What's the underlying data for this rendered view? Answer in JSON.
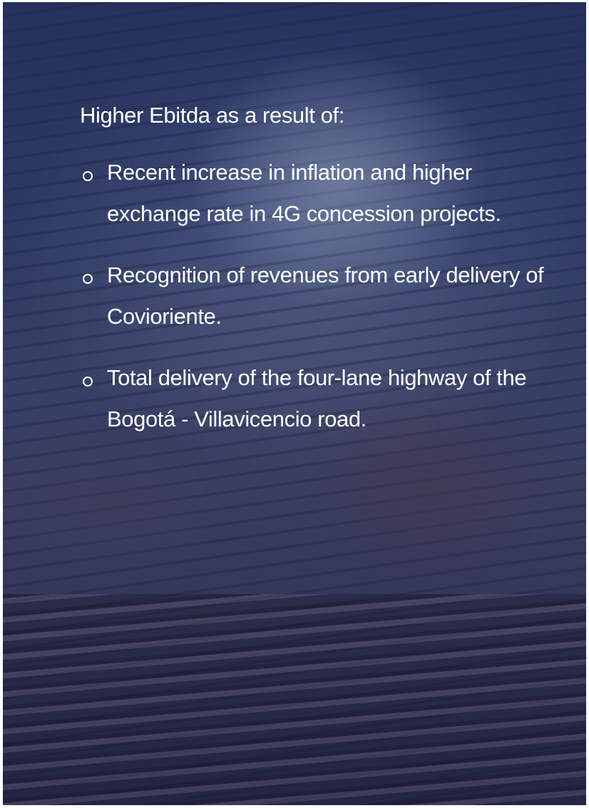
{
  "heading": "Higher Ebitda as a result of:",
  "bullets": [
    "Recent increase in inflation and higher exchange rate in 4G concession projects.",
    "Recognition of revenues from early delivery of Covioriente.",
    "Total delivery of the four-lane highway of the Bogotá - Villavicencio road."
  ]
}
